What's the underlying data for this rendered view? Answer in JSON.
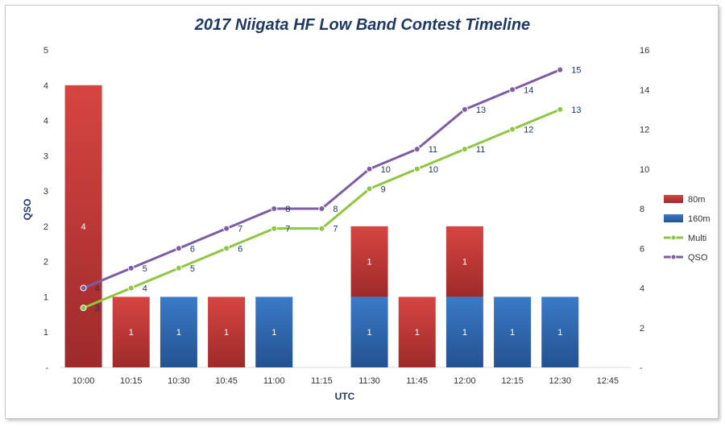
{
  "chart_data": {
    "type": "bar",
    "title": "2017 Niigata HF Low Band Contest Timeline",
    "xlabel": "UTC",
    "ylabel": "QSO",
    "categories": [
      "10:00",
      "10:15",
      "10:30",
      "10:45",
      "11:00",
      "11:15",
      "11:30",
      "11:45",
      "12:00",
      "12:15",
      "12:30",
      "12:45"
    ],
    "left_axis": {
      "ylim": [
        0,
        4.5
      ],
      "tick_values": [
        0,
        0.5,
        1,
        1.5,
        2,
        2.5,
        3,
        3.5,
        4,
        4.5
      ],
      "tick_labels": [
        "-",
        "1",
        "1",
        "2",
        "2",
        "3",
        "3",
        "4",
        "4",
        "5"
      ]
    },
    "right_axis": {
      "ylim": [
        0,
        16
      ],
      "tick_values": [
        0,
        2,
        4,
        6,
        8,
        10,
        12,
        14,
        16
      ],
      "tick_labels": [
        "-",
        "2",
        "4",
        "6",
        "8",
        "10",
        "12",
        "14",
        "16"
      ]
    },
    "bar_series": [
      {
        "name": "80m",
        "axis": "left",
        "color": "#c0392b",
        "values": [
          4,
          1,
          0,
          1,
          0,
          0,
          1,
          1,
          1,
          0,
          0,
          0
        ]
      },
      {
        "name": "160m",
        "axis": "left",
        "color": "#2e6bb5",
        "values": [
          0,
          0,
          1,
          0,
          1,
          0,
          1,
          0,
          1,
          1,
          1,
          0
        ]
      }
    ],
    "line_series": [
      {
        "name": "Multi",
        "axis": "right",
        "color": "#8dc63f",
        "values": [
          3,
          4,
          5,
          6,
          7,
          7,
          9,
          10,
          11,
          12,
          13,
          null
        ]
      },
      {
        "name": "QSO",
        "axis": "right",
        "color": "#7d5ba6",
        "values": [
          4,
          5,
          6,
          7,
          8,
          8,
          10,
          11,
          13,
          14,
          15,
          null
        ]
      }
    ],
    "legend": [
      "80m",
      "160m",
      "Multi",
      "QSO"
    ],
    "legend_position": "right"
  }
}
